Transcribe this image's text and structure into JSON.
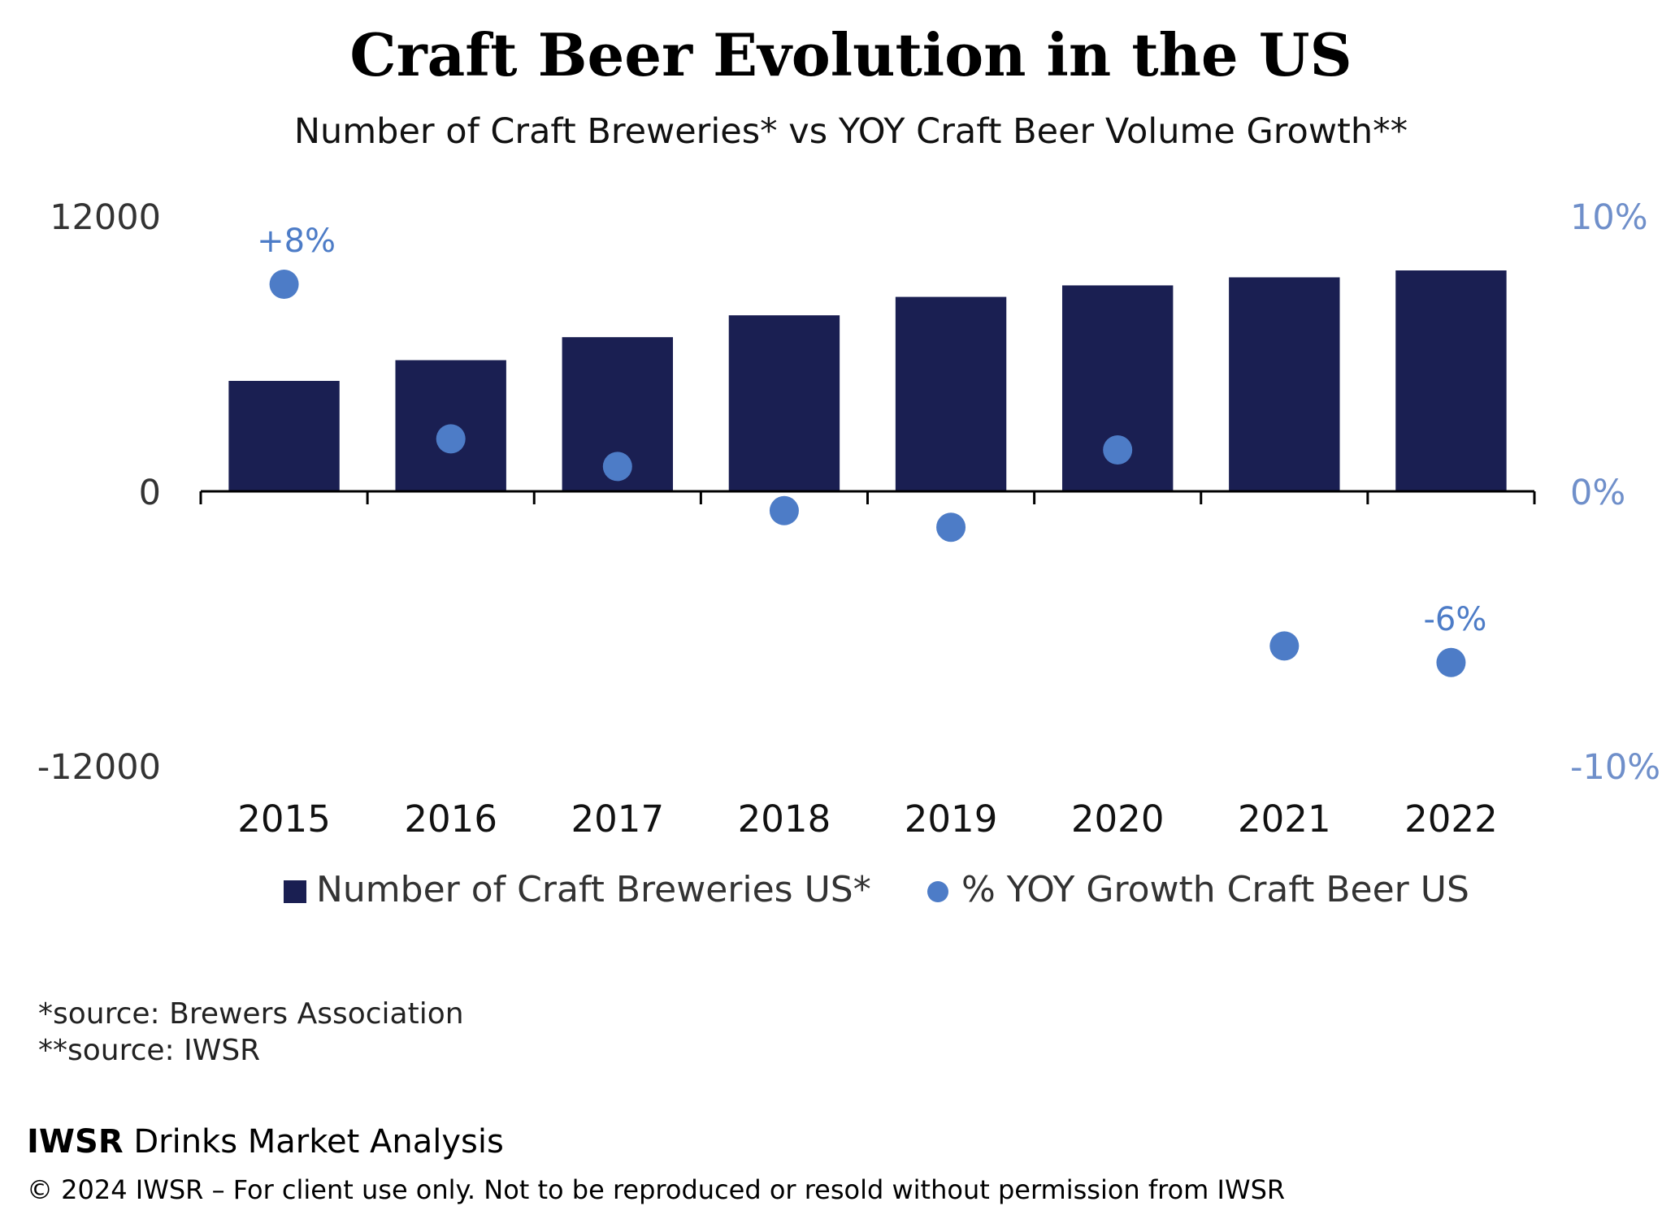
{
  "chart_data": {
    "type": "bar",
    "title": "Craft Beer Evolution in the US",
    "subtitle": "Number of Craft Breweries* vs YOY Craft Beer Volume Growth**",
    "categories": [
      "2015",
      "2016",
      "2017",
      "2018",
      "2019",
      "2020",
      "2021",
      "2022"
    ],
    "series": [
      {
        "name": "Number of Craft Breweries US*",
        "type": "bar",
        "axis": "left",
        "color": "#1a1f52",
        "values": [
          4800,
          5700,
          6700,
          7650,
          8450,
          8950,
          9300,
          9600
        ]
      },
      {
        "name": "% YOY Growth Craft Beer US",
        "type": "scatter",
        "axis": "right",
        "color": "#4d7cc7",
        "values": [
          7.5,
          1.9,
          0.9,
          -0.7,
          -1.3,
          1.5,
          -5.6,
          -6.2
        ]
      }
    ],
    "y_left": {
      "ticks": [
        "12000",
        "0",
        "-12000"
      ],
      "ylim": [
        -12000,
        12000
      ]
    },
    "y_right": {
      "ticks": [
        "10%",
        "0%",
        "-10%"
      ],
      "ylim": [
        -10,
        10
      ]
    },
    "annotations": [
      {
        "category": "2015",
        "text": "+8%"
      },
      {
        "category": "2022",
        "text": "-6%"
      }
    ],
    "legend": {
      "position": "bottom"
    },
    "grid": false
  },
  "footnotes": [
    "*source: Brewers Association",
    "**source: IWSR"
  ],
  "branding": {
    "name_bold": "IWSR",
    "name_rest": " Drinks Market Analysis",
    "copyright": "© 2024 IWSR – For client use only. Not to be reproduced or resold without permission from IWSR"
  },
  "colors": {
    "bar": "#1a1f52",
    "dot": "#4d7cc7",
    "right_axis": "#6f8fca"
  }
}
